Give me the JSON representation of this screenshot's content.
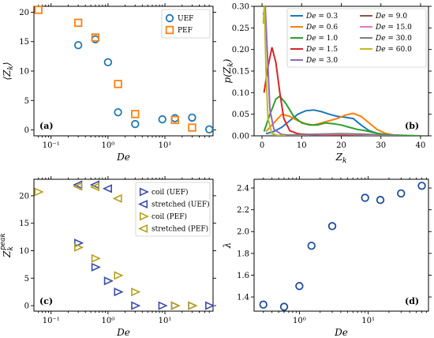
{
  "chart_data": [
    {
      "id": "a",
      "type": "scatter",
      "panel_label": "(a)",
      "xlabel": "De",
      "ylabel": "⟨Z_k⟩",
      "xscale": "log",
      "xlim": [
        0.05,
        70
      ],
      "ylim": [
        -1,
        21
      ],
      "xticks": [
        {
          "v": 0.1,
          "t": "10⁻¹"
        },
        {
          "v": 1,
          "t": "10⁰"
        },
        {
          "v": 10,
          "t": "10¹"
        }
      ],
      "yticks": [
        0,
        5,
        10,
        15,
        20
      ],
      "legend_position": "top-right",
      "series": [
        {
          "name": "UEF",
          "marker": "circle",
          "color": "#1f77b4",
          "points": [
            [
              0.3,
              14.4
            ],
            [
              0.6,
              15.4
            ],
            [
              1.0,
              11.5
            ],
            [
              1.5,
              3.0
            ],
            [
              3.0,
              1.0
            ],
            [
              9.0,
              1.8
            ],
            [
              15.0,
              2.0
            ],
            [
              30.0,
              2.1
            ],
            [
              60.0,
              0.1
            ]
          ]
        },
        {
          "name": "PEF",
          "marker": "square",
          "color": "#ff7f0e",
          "points": [
            [
              0.06,
              20.4
            ],
            [
              0.3,
              18.2
            ],
            [
              0.6,
              15.7
            ],
            [
              1.5,
              7.8
            ],
            [
              3.0,
              2.7
            ],
            [
              15.0,
              1.7
            ],
            [
              30.0,
              0.4
            ]
          ]
        }
      ]
    },
    {
      "id": "b",
      "type": "line",
      "panel_label": "(b)",
      "xlabel": "Z_k",
      "ylabel": "p(Z_k)",
      "xscale": "linear",
      "xlim": [
        -2,
        42
      ],
      "ylim": [
        0,
        0.3
      ],
      "xticks": [
        {
          "v": 0,
          "t": "0"
        },
        {
          "v": 10,
          "t": "10"
        },
        {
          "v": 20,
          "t": "20"
        },
        {
          "v": 30,
          "t": "30"
        },
        {
          "v": 40,
          "t": "40"
        }
      ],
      "yticks": [
        0.0,
        0.05,
        0.1,
        0.15,
        0.2,
        0.25,
        0.3
      ],
      "ytick_labels": [
        "0.00",
        "0.05",
        "0.10",
        "0.15",
        "0.20",
        "0.25",
        "0.30"
      ],
      "legend_position": "top-right",
      "series": [
        {
          "name": "De = 0.3",
          "color": "#1f77b4",
          "points": [
            [
              1,
              0.005
            ],
            [
              3,
              0.01
            ],
            [
              5,
              0.02
            ],
            [
              7,
              0.035
            ],
            [
              9,
              0.05
            ],
            [
              11,
              0.058
            ],
            [
              13,
              0.06
            ],
            [
              15,
              0.056
            ],
            [
              17,
              0.05
            ],
            [
              19,
              0.045
            ],
            [
              21,
              0.043
            ],
            [
              23,
              0.04
            ],
            [
              25,
              0.025
            ],
            [
              27,
              0.012
            ],
            [
              29,
              0.006
            ],
            [
              31,
              0.003
            ],
            [
              33,
              0.002
            ],
            [
              35,
              0.001
            ],
            [
              37,
              0.0
            ]
          ]
        },
        {
          "name": "De = 0.6",
          "color": "#ff7f0e",
          "points": [
            [
              1,
              0.01
            ],
            [
              3,
              0.03
            ],
            [
              5,
              0.05
            ],
            [
              7,
              0.045
            ],
            [
              9,
              0.035
            ],
            [
              11,
              0.028
            ],
            [
              13,
              0.025
            ],
            [
              15,
              0.03
            ],
            [
              17,
              0.035
            ],
            [
              19,
              0.04
            ],
            [
              21,
              0.048
            ],
            [
              23,
              0.052
            ],
            [
              25,
              0.045
            ],
            [
              27,
              0.03
            ],
            [
              29,
              0.015
            ],
            [
              31,
              0.006
            ],
            [
              33,
              0.002
            ],
            [
              35,
              0.0
            ]
          ]
        },
        {
          "name": "De = 1.0",
          "color": "#2ca02c",
          "points": [
            [
              0.5,
              0.01
            ],
            [
              2,
              0.05
            ],
            [
              3.5,
              0.085
            ],
            [
              4.5,
              0.092
            ],
            [
              6,
              0.075
            ],
            [
              8,
              0.045
            ],
            [
              10,
              0.03
            ],
            [
              12,
              0.025
            ],
            [
              14,
              0.025
            ],
            [
              16,
              0.03
            ],
            [
              18,
              0.028
            ],
            [
              20,
              0.025
            ],
            [
              22,
              0.02
            ],
            [
              24,
              0.015
            ],
            [
              26,
              0.012
            ],
            [
              28,
              0.008
            ],
            [
              30,
              0.004
            ],
            [
              33,
              0.002
            ],
            [
              36,
              0.001
            ],
            [
              40,
              0.0
            ]
          ]
        },
        {
          "name": "De = 1.5",
          "color": "#d62728",
          "points": [
            [
              0.5,
              0.1
            ],
            [
              1.5,
              0.16
            ],
            [
              2.5,
              0.205
            ],
            [
              3.5,
              0.17
            ],
            [
              4.5,
              0.1
            ],
            [
              5.5,
              0.04
            ],
            [
              7,
              0.012
            ],
            [
              9,
              0.005
            ],
            [
              12,
              0.003
            ],
            [
              15,
              0.002
            ],
            [
              20,
              0.001
            ],
            [
              25,
              0.0
            ]
          ]
        },
        {
          "name": "De = 3.0",
          "color": "#9467bd",
          "points": [
            [
              0.3,
              0.28
            ],
            [
              0.8,
              0.3
            ],
            [
              1.3,
              0.2
            ],
            [
              2,
              0.06
            ],
            [
              3,
              0.015
            ],
            [
              5,
              0.003
            ],
            [
              8,
              0.001
            ],
            [
              10,
              0.0
            ]
          ]
        },
        {
          "name": "De = 9.0",
          "color": "#8c564b",
          "points": [
            [
              1,
              0.0
            ],
            [
              5,
              0.001
            ],
            [
              10,
              0.002
            ],
            [
              15,
              0.003
            ],
            [
              20,
              0.003
            ],
            [
              25,
              0.002
            ],
            [
              30,
              0.001
            ],
            [
              35,
              0.0
            ]
          ]
        },
        {
          "name": "De = 15.0",
          "color": "#e377c2",
          "points": [
            [
              1,
              0.0
            ],
            [
              5,
              0.001
            ],
            [
              10,
              0.002
            ],
            [
              15,
              0.003
            ],
            [
              20,
              0.004
            ],
            [
              25,
              0.003
            ],
            [
              30,
              0.001
            ],
            [
              35,
              0.0
            ]
          ]
        },
        {
          "name": "De = 30.0",
          "color": "#7f7f7f",
          "points": [
            [
              1,
              0.0
            ],
            [
              5,
              0.001
            ],
            [
              10,
              0.003
            ],
            [
              15,
              0.004
            ],
            [
              20,
              0.005
            ],
            [
              25,
              0.004
            ],
            [
              30,
              0.002
            ],
            [
              35,
              0.0
            ]
          ]
        },
        {
          "name": "De = 60.0",
          "color": "#bcbd22",
          "points": [
            [
              0.3,
              0.26
            ],
            [
              0.6,
              0.3
            ],
            [
              1.0,
              0.15
            ],
            [
              1.5,
              0.04
            ],
            [
              2.5,
              0.006
            ],
            [
              4,
              0.001
            ],
            [
              6,
              0.0
            ]
          ]
        }
      ]
    },
    {
      "id": "c",
      "type": "scatter",
      "panel_label": "(c)",
      "xlabel": "De",
      "ylabel": "Z_k^peak",
      "xscale": "log",
      "xlim": [
        0.05,
        70
      ],
      "ylim": [
        -1,
        23
      ],
      "xticks": [
        {
          "v": 0.1,
          "t": "10⁻¹"
        },
        {
          "v": 1,
          "t": "10⁰"
        },
        {
          "v": 10,
          "t": "10¹"
        }
      ],
      "yticks": [
        0,
        5,
        10,
        15,
        20
      ],
      "legend_position": "right",
      "series": [
        {
          "name": "coil (UEF)",
          "marker": "tri-right",
          "color": "#3b4ba8",
          "points": [
            [
              0.3,
              11.4
            ],
            [
              0.6,
              7.0
            ],
            [
              1.0,
              4.5
            ],
            [
              1.5,
              2.5
            ],
            [
              3.0,
              0.0
            ],
            [
              9.0,
              0.0
            ],
            [
              15.0,
              0.0
            ],
            [
              30.0,
              0.0
            ],
            [
              60.0,
              0.0
            ]
          ]
        },
        {
          "name": "stretched (UEF)",
          "marker": "tri-left",
          "color": "#3b4ba8",
          "points": [
            [
              0.3,
              22.0
            ],
            [
              0.6,
              22.0
            ],
            [
              1.0,
              21.3
            ]
          ]
        },
        {
          "name": "coil (PEF)",
          "marker": "tri-right",
          "color": "#b5a01e",
          "points": [
            [
              0.06,
              20.7
            ],
            [
              0.3,
              10.6
            ],
            [
              0.6,
              8.6
            ],
            [
              1.5,
              5.5
            ],
            [
              3.0,
              2.5
            ],
            [
              15.0,
              0.0
            ],
            [
              30.0,
              0.0
            ]
          ]
        },
        {
          "name": "stretched (PEF)",
          "marker": "tri-left",
          "color": "#b5a01e",
          "points": [
            [
              0.3,
              21.7
            ],
            [
              0.6,
              21.6
            ],
            [
              1.5,
              19.5
            ]
          ]
        }
      ]
    },
    {
      "id": "d",
      "type": "scatter",
      "panel_label": "(d)",
      "xlabel": "De",
      "ylabel": "λ",
      "xscale": "log",
      "xlim": [
        0.22,
        75
      ],
      "ylim": [
        1.27,
        2.48
      ],
      "xticks": [
        {
          "v": 1,
          "t": "10⁰"
        },
        {
          "v": 10,
          "t": "10¹"
        }
      ],
      "yticks": [
        1.4,
        1.6,
        1.8,
        2.0,
        2.2,
        2.4
      ],
      "ytick_labels": [
        "1.4",
        "1.6",
        "1.8",
        "2.0",
        "2.2",
        "2.4"
      ],
      "series": [
        {
          "marker": "circle",
          "color": "#1f4ea0",
          "points": [
            [
              0.3,
              1.33
            ],
            [
              0.6,
              1.31
            ],
            [
              1.0,
              1.5
            ],
            [
              1.5,
              1.87
            ],
            [
              3.0,
              2.05
            ],
            [
              9.0,
              2.31
            ],
            [
              15.0,
              2.29
            ],
            [
              30.0,
              2.35
            ],
            [
              60.0,
              2.42
            ]
          ]
        }
      ]
    }
  ]
}
